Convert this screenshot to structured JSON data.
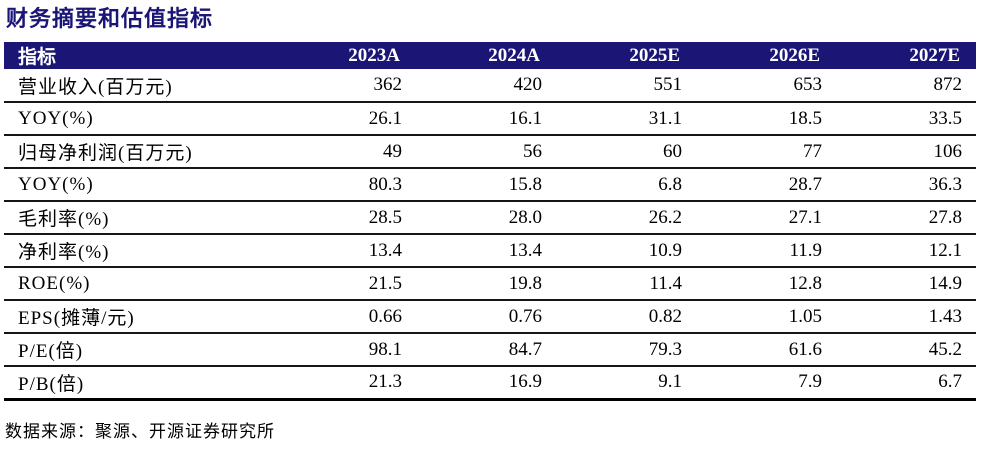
{
  "title": "财务摘要和估值指标",
  "colors": {
    "navy": "#1B1676",
    "divider": "#161616",
    "header_text": "#FFFFFF",
    "body_text": "#000000"
  },
  "table": {
    "header": {
      "label": "指标",
      "years": [
        "2023A",
        "2024A",
        "2025E",
        "2026E",
        "2027E"
      ]
    },
    "rows": [
      {
        "label": "营业收入(百万元)",
        "values": [
          "362",
          "420",
          "551",
          "653",
          "872"
        ]
      },
      {
        "label": "YOY(%)",
        "values": [
          "26.1",
          "16.1",
          "31.1",
          "18.5",
          "33.5"
        ]
      },
      {
        "label": "归母净利润(百万元)",
        "values": [
          "49",
          "56",
          "60",
          "77",
          "106"
        ]
      },
      {
        "label": "YOY(%)",
        "values": [
          "80.3",
          "15.8",
          "6.8",
          "28.7",
          "36.3"
        ]
      },
      {
        "label": "毛利率(%)",
        "values": [
          "28.5",
          "28.0",
          "26.2",
          "27.1",
          "27.8"
        ]
      },
      {
        "label": "净利率(%)",
        "values": [
          "13.4",
          "13.4",
          "10.9",
          "11.9",
          "12.1"
        ]
      },
      {
        "label": "ROE(%)",
        "values": [
          "21.5",
          "19.8",
          "11.4",
          "12.8",
          "14.9"
        ]
      },
      {
        "label": "EPS(摊薄/元)",
        "values": [
          "0.66",
          "0.76",
          "0.82",
          "1.05",
          "1.43"
        ]
      },
      {
        "label": "P/E(倍)",
        "values": [
          "98.1",
          "84.7",
          "79.3",
          "61.6",
          "45.2"
        ]
      },
      {
        "label": "P/B(倍)",
        "values": [
          "21.3",
          "16.9",
          "9.1",
          "7.9",
          "6.7"
        ]
      }
    ]
  },
  "footer": {
    "source_note": "数据来源：聚源、开源证券研究所"
  }
}
